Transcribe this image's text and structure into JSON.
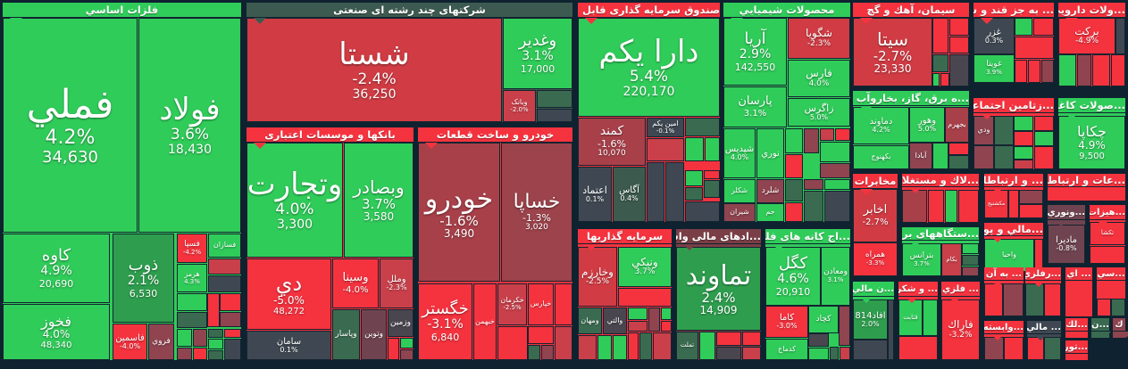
{
  "palette": {
    "green": "#30cc5a",
    "red": "#f5333f",
    "dark_red": "#a8404a",
    "mid_red": "#c9404a",
    "purple_red": "#8f4450",
    "gray": "#3f4852",
    "dark_green": "#3a6b50",
    "mid_green": "#2e9e4e",
    "header_dark": "#3d5a50",
    "header_brown": "#7a3e46"
  },
  "sectors": [
    {
      "title": "فلزات اساسي",
      "color": "#30cc5a",
      "tiles": [
        {
          "name": "فملي",
          "change": "4.2%",
          "value": "34,630",
          "color": "#30cc5a"
        },
        {
          "name": "فولاد",
          "change": "3.6%",
          "value": "18,430",
          "color": "#30cc5a"
        },
        {
          "name": "کاوه",
          "change": "4.9%",
          "value": "20,690",
          "color": "#30cc5a"
        },
        {
          "name": "فخوز",
          "change": "4.0%",
          "value": "48,340",
          "color": "#30cc5a"
        },
        {
          "name": "ذوب",
          "change": "2.1%",
          "value": "6,530",
          "color": "#2e9e4e"
        },
        {
          "name": "فاسمين",
          "change": "-4.0%",
          "color": "#f5333f"
        },
        {
          "name": "فروي",
          "color": "#8f4450"
        },
        {
          "name": "فسپا",
          "change": "-4.2%",
          "color": "#f5333f"
        },
        {
          "name": "فسازان",
          "color": "#30cc5a"
        },
        {
          "name": "هرمز",
          "change": "4.3%",
          "color": "#30cc5a"
        }
      ]
    },
    {
      "title": "شرکتهای چند رشته ای صنعتی",
      "color": "#3d5a50",
      "tiles": [
        {
          "name": "شستا",
          "change": "-2.4%",
          "value": "36,250",
          "color": "#d13c44"
        },
        {
          "name": "وغدير",
          "change": "3.1%",
          "value": "17,000",
          "color": "#30cc5a"
        },
        {
          "name": "وبانک",
          "change": "-2.0%",
          "color": "#c9404a"
        }
      ]
    },
    {
      "title": "بانکها و موسسات اعتباری",
      "color": "#f5333f",
      "tiles": [
        {
          "name": "وتجارت",
          "change": "4.0%",
          "value": "3,300",
          "color": "#30cc5a"
        },
        {
          "name": "وبصادر",
          "change": "3.7%",
          "value": "3,580",
          "color": "#30cc5a"
        },
        {
          "name": "دي",
          "change": "-5.0%",
          "value": "48,272",
          "color": "#f5333f"
        },
        {
          "name": "وسينا",
          "change": "-4.0%",
          "color": "#f5333f"
        },
        {
          "name": "وملل",
          "change": "-2.3%",
          "color": "#c9404a"
        },
        {
          "name": "سامان",
          "change": "0.1%",
          "color": "#3f4852"
        },
        {
          "name": "وپاسار",
          "color": "#3a6b50"
        },
        {
          "name": "وتوين",
          "color": "#6f4450"
        },
        {
          "name": "وزمين",
          "color": "#4a4650"
        }
      ]
    },
    {
      "title": "خودرو و ساخت قطعات",
      "color": "#f5333f",
      "tiles": [
        {
          "name": "خودرو",
          "change": "-1.6%",
          "value": "3,490",
          "color": "#a8404a"
        },
        {
          "name": "خساپا",
          "change": "-1.3%",
          "value": "3,020",
          "color": "#9c434b"
        },
        {
          "name": "خگستر",
          "change": "-3.1%",
          "value": "6,840",
          "color": "#f5333f"
        },
        {
          "name": "خبهمن",
          "color": "#f5333f"
        },
        {
          "name": "خكرمان",
          "change": "-2.5%",
          "color": "#c9404a"
        },
        {
          "name": "خپارس",
          "color": "#f5333f"
        }
      ]
    },
    {
      "title": "صندوق سرمایه گذاری قابل معامله",
      "color": "#f5333f",
      "tiles": [
        {
          "name": "دارا يكم",
          "change": "5.4%",
          "value": "220,170",
          "color": "#30cc5a"
        },
        {
          "name": "كمند",
          "change": "-1.6%",
          "value": "10,070",
          "color": "#a8404a"
        },
        {
          "name": "امين يكم",
          "change": "-0.1%",
          "color": "#3f4852"
        },
        {
          "name": "اعتماد",
          "change": "0.1%",
          "color": "#3f4852"
        },
        {
          "name": "آگاس",
          "change": "0.4%",
          "color": "#3c5a4e"
        }
      ]
    },
    {
      "title": "محصولات شيميايي",
      "color": "#30cc5a",
      "tiles": [
        {
          "name": "آريا",
          "change": "2.9%",
          "value": "142,550",
          "color": "#30cc5a"
        },
        {
          "name": "شگويا",
          "change": "-2.3%",
          "color": "#d13c44"
        },
        {
          "name": "فارس",
          "change": "4.0%",
          "color": "#30cc5a"
        },
        {
          "name": "زاگرس",
          "change": "5.0%",
          "color": "#30cc5a"
        },
        {
          "name": "پارسان",
          "change": "3.1%",
          "color": "#30cc5a"
        },
        {
          "name": "شپديس",
          "change": "4.0%",
          "color": "#30cc5a"
        },
        {
          "name": "نوري",
          "color": "#30cc5a"
        },
        {
          "name": "شكلر",
          "color": "#30cc5a"
        },
        {
          "name": "شلرد",
          "color": "#8f4450"
        },
        {
          "name": "شيران",
          "color": "#8f4450"
        },
        {
          "name": "جم",
          "color": "#30cc5a"
        }
      ]
    },
    {
      "title": "سرمايه گذاريها",
      "color": "#f5333f",
      "tiles": [
        {
          "name": "وخارزم",
          "change": "-2.5%",
          "color": "#d13c44"
        },
        {
          "name": "ونيكي",
          "change": "3.7%",
          "color": "#30cc5a"
        },
        {
          "name": "ومهان",
          "color": "#3a6b50"
        },
        {
          "name": "والتي",
          "color": "#4a4650"
        }
      ]
    },
    {
      "title": "...ادهای مالی واسط",
      "color": "#7a3e46",
      "tiles": [
        {
          "name": "تماوند",
          "change": "2.4%",
          "value": "14,909",
          "color": "#2e9e4e"
        },
        {
          "name": "تملت",
          "color": "#3a6b50"
        }
      ]
    },
    {
      "title": "...اج کانه های فلزی",
      "color": "#30cc5a",
      "tiles": [
        {
          "name": "كگل",
          "change": "4.6%",
          "value": "20,910",
          "color": "#30cc5a"
        },
        {
          "name": "ومعادن",
          "change": "3.1%",
          "color": "#30cc5a"
        },
        {
          "name": "كاما",
          "change": "-3.0%",
          "color": "#f5333f"
        },
        {
          "name": "كچاد",
          "color": "#30cc5a"
        },
        {
          "name": "كدماج",
          "color": "#30cc5a"
        }
      ]
    },
    {
      "title": "سيمان، آهك و گچ",
      "color": "#f5333f",
      "tiles": [
        {
          "name": "سيتا",
          "change": "-2.7%",
          "value": "23,330",
          "color": "#d13c44"
        }
      ]
    },
    {
      "title": "... به جز قند و شكر",
      "color": "#f5333f",
      "tiles": [
        {
          "name": "غزر",
          "change": "0.3%",
          "color": "#3f4852"
        },
        {
          "name": "غويتا",
          "change": "3.9%",
          "color": "#30cc5a"
        }
      ]
    },
    {
      "title": "...ولات دارويي",
      "color": "#f5333f",
      "tiles": [
        {
          "name": "بركت",
          "change": "-4.9%",
          "color": "#f5333f"
        }
      ]
    },
    {
      "title": "...ه برق، گاز، بخاروآب گرم",
      "color": "#30cc5a",
      "tiles": [
        {
          "name": "دماوند",
          "change": "4.2%",
          "color": "#30cc5a"
        },
        {
          "name": "وهور",
          "change": "5.0%",
          "color": "#30cc5a"
        },
        {
          "name": "بجهرم",
          "color": "#a8404a"
        },
        {
          "name": "بكهنوج",
          "color": "#30cc5a"
        },
        {
          "name": "آبادا",
          "color": "#8f4450"
        }
      ]
    },
    {
      "title": "...زتامين اجتماعي",
      "color": "#f5333f",
      "tiles": [
        {
          "name": "ودي",
          "color": "#8f4450"
        }
      ]
    },
    {
      "title": "...صولات كاغذي",
      "color": "#30cc5a",
      "tiles": [
        {
          "name": "چكاپا",
          "change": "4.9%",
          "value": "9,500",
          "color": "#30cc5a"
        }
      ]
    },
    {
      "title": "مخابرات",
      "color": "#f5333f",
      "tiles": [
        {
          "name": "اخابر",
          "change": "-2.7%",
          "color": "#d13c44"
        },
        {
          "name": "همراه",
          "change": "-3.3%",
          "color": "#f5333f"
        }
      ]
    },
    {
      "title": "...لاك و مستغلات",
      "color": "#f5333f",
      "tiles": []
    },
    {
      "title": "...ستگاههای برقی",
      "color": "#30cc5a",
      "tiles": [
        {
          "name": "بترانس",
          "change": "3.7%",
          "color": "#30cc5a"
        },
        {
          "name": "بكام",
          "color": "#c9404a"
        }
      ]
    },
    {
      "title": "... و ارتباطات",
      "color": "#f5333f",
      "tiles": [
        {
          "name": "مكشتيج",
          "color": "#f5333f"
        }
      ]
    },
    {
      "title": "...عات و ارتباطات",
      "color": "#f5333f",
      "tiles": []
    },
    {
      "title": "...مالي و پولي",
      "color": "#f5333f",
      "tiles": [
        {
          "name": "واحيا",
          "color": "#30cc5a"
        }
      ]
    },
    {
      "title": "...ونوري",
      "color": "#6f4450",
      "tiles": [
        {
          "name": "ماديرا",
          "change": "-0.8%",
          "color": "#6f4450"
        }
      ]
    },
    {
      "title": "...هيزات",
      "color": "#f5333f",
      "tiles": [
        {
          "name": "تكشا",
          "color": "#f5333f"
        }
      ]
    },
    {
      "title": "...ن مالي",
      "color": "#30cc5a",
      "tiles": [
        {
          "name": "افاد814",
          "change": "2.0%",
          "color": "#2e9e4e"
        }
      ]
    },
    {
      "title": "... و شكر",
      "color": "#f5333f",
      "tiles": [
        {
          "name": "قثابت",
          "color": "#30cc5a"
        }
      ]
    },
    {
      "title": "... فلزي",
      "color": "#f5333f",
      "tiles": [
        {
          "name": "فاراك",
          "change": "-3.2%",
          "color": "#f5333f"
        }
      ]
    },
    {
      "title": "... به آن",
      "color": "#f5333f",
      "tiles": []
    },
    {
      "title": "...رفلزي",
      "color": "#f5333f",
      "tiles": []
    },
    {
      "title": "... اي",
      "color": "#f5333f",
      "tiles": []
    },
    {
      "title": "...سي",
      "color": "#f5333f",
      "tiles": []
    },
    {
      "title": "...وابسته",
      "color": "#f5333f",
      "tiles": []
    },
    {
      "title": "... مالي",
      "color": "#3f4852",
      "tiles": []
    },
    {
      "title": "...لك",
      "color": "#f5333f",
      "tiles": []
    },
    {
      "title": "...ن",
      "color": "#3a6b50",
      "tiles": []
    },
    {
      "title": "ك",
      "color": "#8f4450",
      "tiles": []
    },
    {
      "title": "...تور",
      "color": "#f5333f",
      "tiles": []
    }
  ]
}
